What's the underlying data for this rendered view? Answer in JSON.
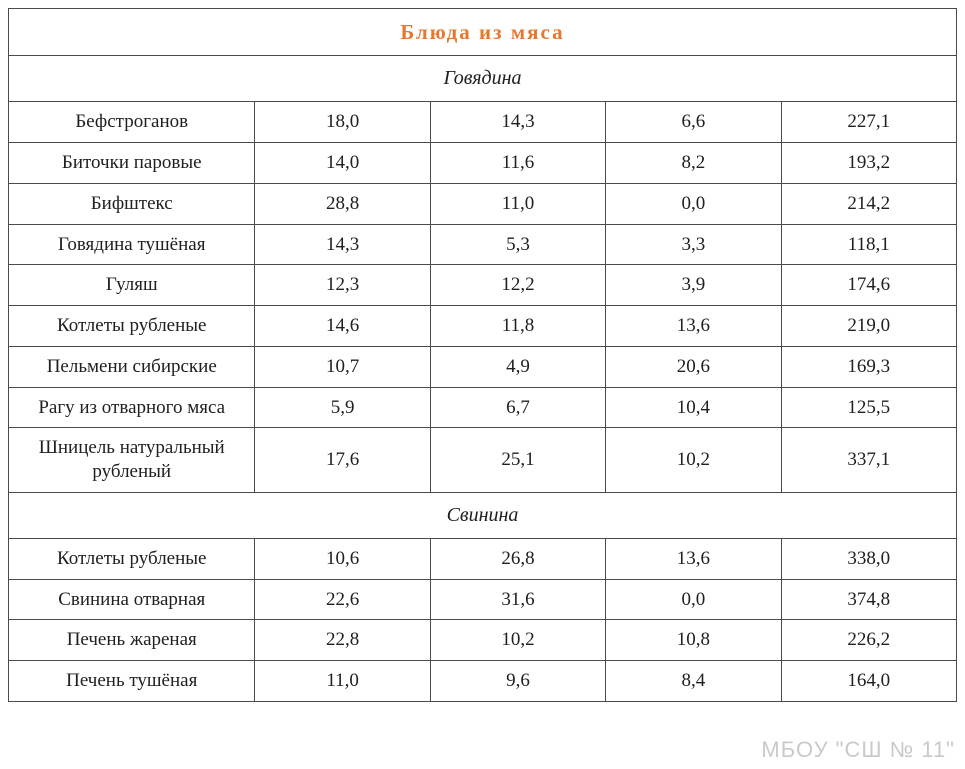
{
  "table": {
    "main_title": "Блюда  из  мяса",
    "main_title_color": "#e8772e",
    "border_color": "#4a4a4a",
    "text_color": "#202020",
    "background_color": "#ffffff",
    "font_family": "Georgia serif",
    "title_fontsize": 21,
    "sub_fontsize": 20,
    "cell_fontsize": 19,
    "column_widths_pct": [
      26,
      18.5,
      18.5,
      18.5,
      18.5
    ],
    "sections": [
      {
        "title": "Говядина",
        "rows": [
          {
            "name": "Бефстроганов",
            "c1": "18,0",
            "c2": "14,3",
            "c3": "6,6",
            "c4": "227,1"
          },
          {
            "name": "Биточки паровые",
            "c1": "14,0",
            "c2": "11,6",
            "c3": "8,2",
            "c4": "193,2"
          },
          {
            "name": "Бифштекс",
            "c1": "28,8",
            "c2": "11,0",
            "c3": "0,0",
            "c4": "214,2"
          },
          {
            "name": "Говядина тушёная",
            "c1": "14,3",
            "c2": "5,3",
            "c3": "3,3",
            "c4": "118,1"
          },
          {
            "name": "Гуляш",
            "c1": "12,3",
            "c2": "12,2",
            "c3": "3,9",
            "c4": "174,6"
          },
          {
            "name": "Котлеты рубленые",
            "c1": "14,6",
            "c2": "11,8",
            "c3": "13,6",
            "c4": "219,0"
          },
          {
            "name": "Пельмени сибирские",
            "c1": "10,7",
            "c2": "4,9",
            "c3": "20,6",
            "c4": "169,3"
          },
          {
            "name": "Рагу из отварного мяса",
            "c1": "5,9",
            "c2": "6,7",
            "c3": "10,4",
            "c4": "125,5"
          },
          {
            "name": "Шницель натуральный рубленый",
            "c1": "17,6",
            "c2": "25,1",
            "c3": "10,2",
            "c4": "337,1"
          }
        ]
      },
      {
        "title": "Свинина",
        "rows": [
          {
            "name": "Котлеты рубленые",
            "c1": "10,6",
            "c2": "26,8",
            "c3": "13,6",
            "c4": "338,0"
          },
          {
            "name": "Свинина отварная",
            "c1": "22,6",
            "c2": "31,6",
            "c3": "0,0",
            "c4": "374,8"
          },
          {
            "name": "Печень жареная",
            "c1": "22,8",
            "c2": "10,2",
            "c3": "10,8",
            "c4": "226,2"
          },
          {
            "name": "Печень тушёная",
            "c1": "11,0",
            "c2": "9,6",
            "c3": "8,4",
            "c4": "164,0"
          }
        ]
      }
    ]
  },
  "watermark": "МБОУ \"СШ № 11\""
}
